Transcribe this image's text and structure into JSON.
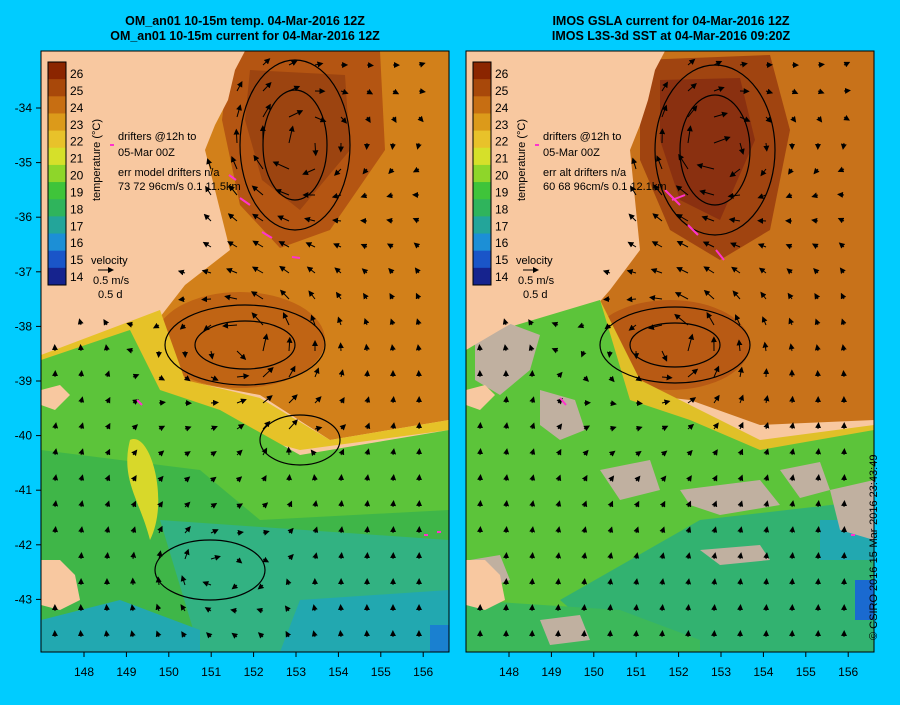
{
  "panels": [
    {
      "id": "left",
      "title_line1": "OM_an01 10-15m temp. 04-Mar-2016 12Z",
      "title_line2": "OM_an01 10-15m current for 04-Mar-2016 12Z",
      "legend_drifters_line1": "drifters @12h to",
      "legend_drifters_line2": "05-Mar 00Z",
      "legend_err_line1": "err model drifters n/a",
      "legend_err_line2": "73 72 96cm/s 0.1 11.5km",
      "has_missing_data": false
    },
    {
      "id": "right",
      "title_line1": "IMOS GSLA current for 04-Mar-2016 12Z",
      "title_line2": "IMOS L3S-3d SST at 04-Mar-2016 09:20Z",
      "legend_drifters_line1": "drifters @12h to",
      "legend_drifters_line2": "05-Mar 00Z",
      "legend_err_line1": "err alt drifters n/a",
      "legend_err_line2": "60 68 96cm/s 0.1 12.1km",
      "has_missing_data": true
    }
  ],
  "colorbar": {
    "label": "temperature (°C)",
    "ticks": [
      "26",
      "25",
      "24",
      "23",
      "22",
      "21",
      "20",
      "19",
      "18",
      "17",
      "16",
      "15",
      "14"
    ],
    "colors": [
      "#8b2500",
      "#a8480a",
      "#c76e12",
      "#dc9a1a",
      "#e8c22a",
      "#d6e02a",
      "#8ed62a",
      "#3fc43a",
      "#2fb45c",
      "#23a59a",
      "#1c8fd6",
      "#1a55c8",
      "#16238e"
    ]
  },
  "velocity_key": {
    "label": "velocity",
    "speed": "0.5 m/s",
    "time": "0.5 d"
  },
  "axes": {
    "lat_ticks": [
      "-34",
      "-35",
      "-36",
      "-37",
      "-38",
      "-39",
      "-40",
      "-41",
      "-42",
      "-43"
    ],
    "lon_ticks": [
      "148",
      "149",
      "150",
      "151",
      "152",
      "153",
      "154",
      "155",
      "156"
    ]
  },
  "colors": {
    "background": "#00ccff",
    "land": "#f8c8a0",
    "missing_data": "#c0b0a0",
    "drifter": "#ff33cc",
    "arrow": "#000000"
  },
  "credit": "© CSIRO 2016  15-Mar-2016 23:43:49"
}
